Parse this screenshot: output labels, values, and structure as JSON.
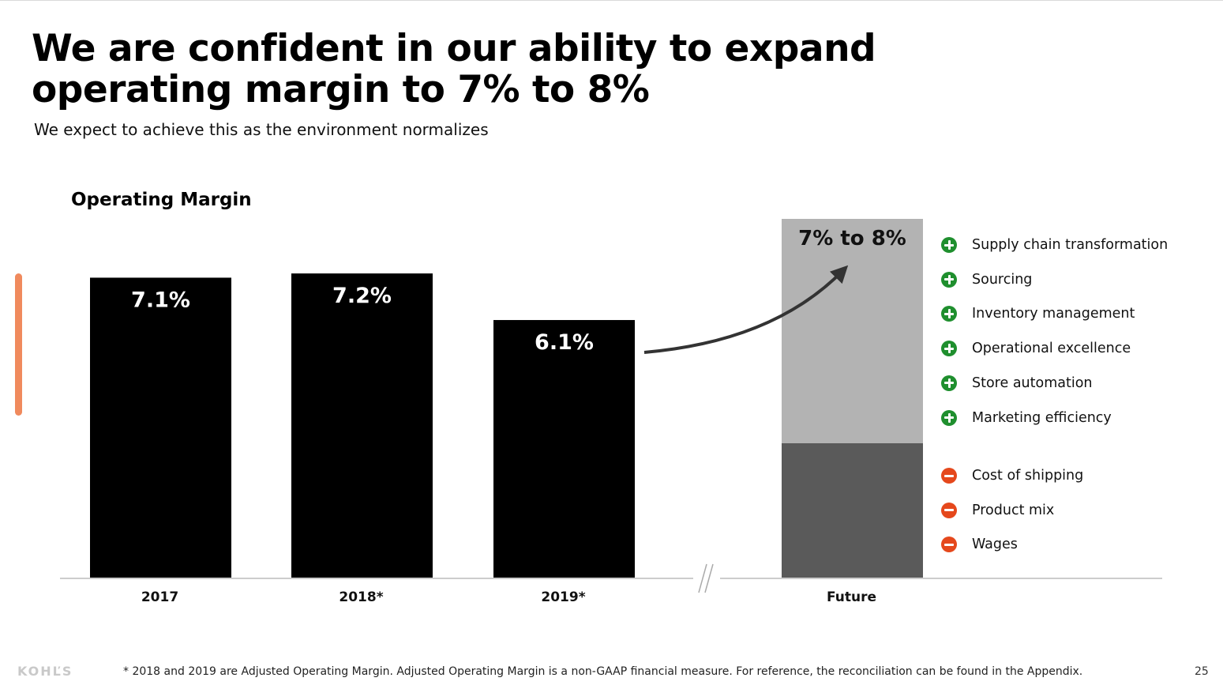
{
  "title_line1": "We are confident in our ability to expand",
  "title_line2": "operating margin to 7% to 8%",
  "subtitle": "We expect to achieve this as the environment normalizes",
  "colors": {
    "bar": "#000000",
    "future_top": "#b3b3b3",
    "future_base": "#5a5a5a",
    "accent": "#f08a5d",
    "positive": "#1f8f2e",
    "negative": "#e5481c"
  },
  "chart_data": {
    "type": "bar",
    "title": "Operating Margin",
    "categories": [
      "2017",
      "2018*",
      "2019*",
      "Future"
    ],
    "values": [
      7.1,
      7.2,
      6.1,
      null
    ],
    "labels": [
      "7.1%",
      "7.2%",
      "6.1%",
      "7% to 8%"
    ],
    "future_range": [
      7,
      8
    ],
    "axis_break": "between 2019* and Future",
    "grid": false,
    "annotation": "arrow from 2019* to Future"
  },
  "drivers": {
    "positive": [
      {
        "label": "Supply chain transformation",
        "icon": "plus-circle-icon"
      },
      {
        "label": "Sourcing",
        "icon": "plus-circle-icon"
      },
      {
        "label": "Inventory management",
        "icon": "plus-circle-icon"
      },
      {
        "label": "Operational excellence",
        "icon": "plus-circle-icon"
      },
      {
        "label": "Store automation",
        "icon": "plus-circle-icon"
      },
      {
        "label": "Marketing efficiency",
        "icon": "plus-circle-icon"
      }
    ],
    "negative": [
      {
        "label": "Cost of shipping",
        "icon": "minus-circle-icon"
      },
      {
        "label": "Product mix",
        "icon": "minus-circle-icon"
      },
      {
        "label": "Wages",
        "icon": "minus-circle-icon"
      }
    ]
  },
  "footer": {
    "logo": "KOHĽS",
    "footnote": "* 2018 and 2019 are Adjusted Operating Margin. Adjusted Operating Margin is a non-GAAP financial measure. For reference, the reconciliation can be found in the Appendix.",
    "page_number": "25"
  }
}
